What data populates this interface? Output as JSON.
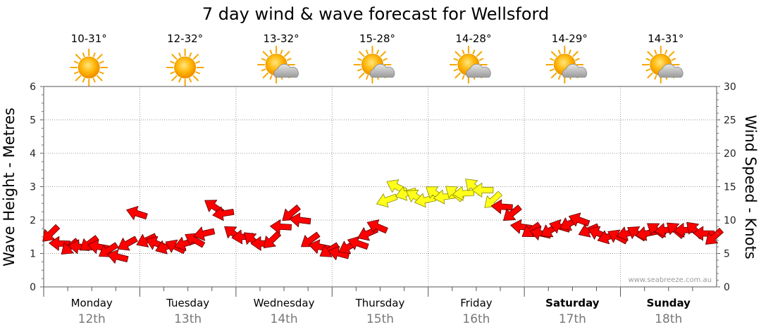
{
  "chart_data": {
    "type": "line",
    "title": "7 day wind & wave forecast for Wellsford",
    "ylabel_left": "Wave Height - Metres",
    "ylabel_right": "Wind Speed - Knots",
    "ylim_left": [
      0,
      6
    ],
    "ylim_right": [
      0,
      30
    ],
    "yticks_left": [
      "0",
      "1",
      "2",
      "3",
      "4",
      "5",
      "6"
    ],
    "yticks_right": [
      "0",
      "5",
      "10",
      "15",
      "20",
      "25",
      "30"
    ],
    "grid": true,
    "credit": "www.seabreeze.com.au",
    "days": [
      {
        "name": "Monday",
        "date": "12th",
        "temp": "10-31°",
        "weather": "sunny",
        "bold": false
      },
      {
        "name": "Tuesday",
        "date": "13th",
        "temp": "12-32°",
        "weather": "sunny",
        "bold": false
      },
      {
        "name": "Wednesday",
        "date": "14th",
        "temp": "13-32°",
        "weather": "partly-cloudy",
        "bold": false
      },
      {
        "name": "Thursday",
        "date": "15th",
        "temp": "15-28°",
        "weather": "partly-cloudy",
        "bold": false
      },
      {
        "name": "Friday",
        "date": "16th",
        "temp": "14-28°",
        "weather": "partly-cloudy",
        "bold": false
      },
      {
        "name": "Saturday",
        "date": "17th",
        "temp": "14-29°",
        "weather": "partly-cloudy",
        "bold": true
      },
      {
        "name": "Sunday",
        "date": "18th",
        "temp": "14-31°",
        "weather": "partly-cloudy",
        "bold": true
      }
    ],
    "wind_speed_knots": {
      "x_day": [
        0.0,
        0.1,
        0.2,
        0.3,
        0.4,
        0.5,
        0.6,
        0.7,
        0.8,
        0.9,
        1.0,
        1.1,
        1.2,
        1.3,
        1.4,
        1.5,
        1.6,
        1.7,
        1.8,
        1.9,
        2.0,
        2.1,
        2.2,
        2.3,
        2.4,
        2.5,
        2.6,
        2.7,
        2.8,
        2.9,
        3.0,
        3.1,
        3.2,
        3.3,
        3.4,
        3.5,
        3.6,
        3.7,
        3.8,
        3.9,
        4.0,
        4.1,
        4.2,
        4.3,
        4.4,
        4.5,
        4.6,
        4.7,
        4.8,
        4.9,
        5.0,
        5.1,
        5.2,
        5.3,
        5.4,
        5.5,
        5.6,
        5.7,
        5.8,
        5.9,
        6.0,
        6.1,
        6.2,
        6.3,
        6.4,
        6.5,
        6.6,
        6.7,
        6.8,
        6.9
      ],
      "values": [
        8,
        6.5,
        6,
        6,
        6.5,
        6,
        5.5,
        4.5,
        6.5,
        11,
        7,
        6.5,
        6,
        6,
        6.5,
        7,
        8,
        12,
        11,
        8,
        7.5,
        7,
        6.5,
        7,
        9,
        11,
        10,
        7,
        6,
        5.5,
        5,
        6,
        6.5,
        8,
        9,
        13,
        15,
        14,
        13.5,
        13,
        14,
        13.5,
        14,
        14,
        15,
        14.5,
        13,
        12,
        11,
        9,
        8.5,
        8,
        8.5,
        9,
        9.5,
        10,
        8.5,
        8,
        7.5,
        7.5,
        8,
        8,
        8,
        8.5,
        8.5,
        8.5,
        8.5,
        8.5,
        8,
        7.5
      ]
    }
  }
}
